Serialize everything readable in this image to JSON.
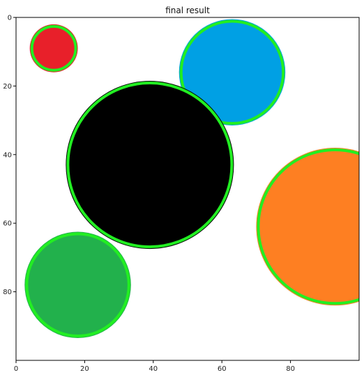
{
  "chart_data": {
    "type": "image",
    "title": "final result",
    "xlim": [
      0,
      100
    ],
    "ylim": [
      0,
      100
    ],
    "y_inverted": true,
    "x_ticks": [
      0,
      20,
      40,
      60,
      80
    ],
    "y_ticks": [
      0,
      20,
      40,
      60,
      80
    ],
    "outline_color": "#22ee22",
    "background_color": "#ffffff",
    "circles": [
      {
        "name": "red",
        "cx": 11,
        "cy": 9,
        "r": 7,
        "color": "#e8202a"
      },
      {
        "name": "blue",
        "cx": 63,
        "cy": 16,
        "r": 15.5,
        "color": "#00a0e4"
      },
      {
        "name": "black",
        "cx": 39,
        "cy": 43,
        "r": 24.5,
        "color": "#000000"
      },
      {
        "name": "orange",
        "cx": 93,
        "cy": 61,
        "r": 23,
        "color": "#fe7f22"
      },
      {
        "name": "green",
        "cx": 18,
        "cy": 78,
        "r": 15.5,
        "color": "#22b14c"
      }
    ]
  }
}
